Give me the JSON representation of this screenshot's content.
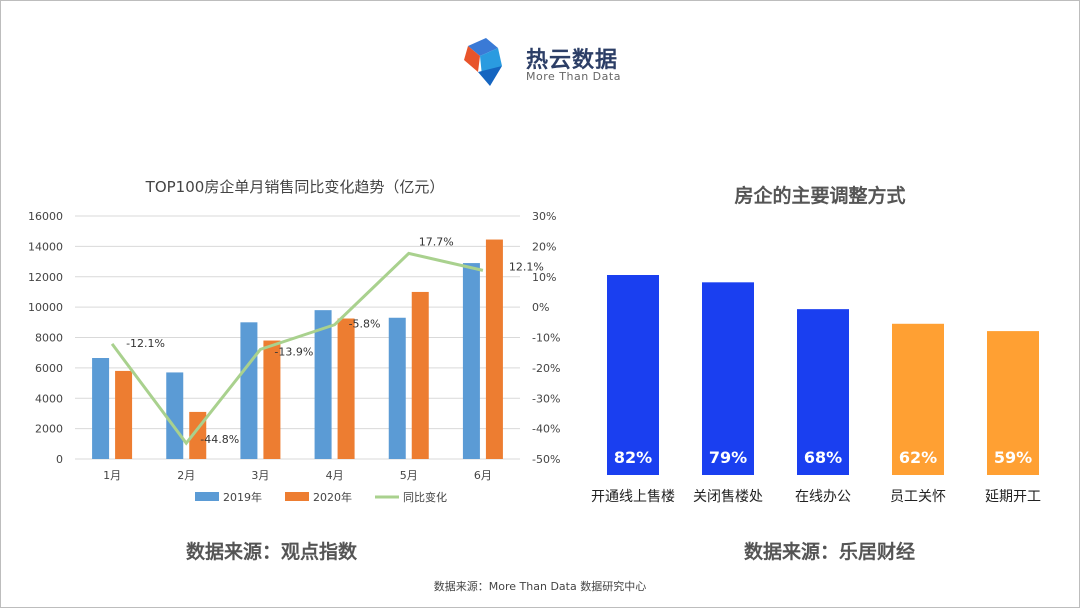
{
  "logo": {
    "name": "热云数据",
    "tagline": "More Than Data"
  },
  "chart_data": [
    {
      "type": "bar",
      "title": "TOP100房企单月销售同比变化趋势（亿元）",
      "categories": [
        "1月",
        "2月",
        "3月",
        "4月",
        "5月",
        "6月"
      ],
      "series": [
        {
          "name": "2019年",
          "values": [
            6650,
            5700,
            9000,
            9800,
            9300,
            12900
          ],
          "color": "#5b9bd5"
        },
        {
          "name": "2020年",
          "values": [
            5800,
            3100,
            7800,
            9250,
            11000,
            14450
          ],
          "color": "#ed7d31"
        },
        {
          "name": "同比变化",
          "type": "line",
          "values": [
            -12.1,
            -44.8,
            -13.9,
            -5.8,
            17.7,
            12.1
          ],
          "labels": [
            "-12.1%",
            "-44.8%",
            "-13.9%",
            "-5.8%",
            "17.7%",
            "12.1%"
          ],
          "color": "#a9d18e",
          "axis": "right"
        }
      ],
      "yticks": [
        "0",
        "2000",
        "4000",
        "6000",
        "8000",
        "10000",
        "12000",
        "14000",
        "16000"
      ],
      "y2ticks": [
        "-50%",
        "-40%",
        "-30%",
        "-20%",
        "-10%",
        "0%",
        "10%",
        "20%",
        "30%"
      ],
      "ylim": [
        0,
        16000
      ],
      "y2lim": [
        -50,
        30
      ],
      "grid": true,
      "legend": "bottom"
    },
    {
      "type": "bar",
      "title": "房企的主要调整方式",
      "categories": [
        "开通线上售楼",
        "关闭售楼处",
        "在线办公",
        "员工关怀",
        "延期开工"
      ],
      "values": [
        82,
        79,
        68,
        62,
        59
      ],
      "labels": [
        "82%",
        "79%",
        "68%",
        "62%",
        "59%"
      ],
      "colors": [
        "#1a3ff0",
        "#1a3ff0",
        "#1a3ff0",
        "#ffa033",
        "#ffa033"
      ]
    }
  ],
  "captions": {
    "left": "数据来源：观点指数",
    "right": "数据来源：乐居财经"
  },
  "footer": "数据来源：More Than Data 数据研究中心"
}
